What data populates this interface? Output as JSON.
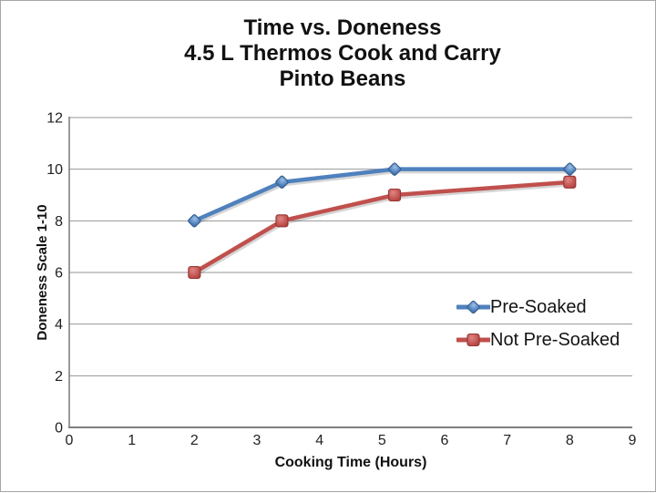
{
  "window": {
    "background": "#ffffff",
    "border_color": "#a6a6a6"
  },
  "title": {
    "lines": [
      "Time vs. Doneness",
      "4.5 L Thermos Cook and Carry",
      "Pinto Beans"
    ]
  },
  "chart_data": {
    "type": "line",
    "title": "Time vs. Doneness 4.5 L Thermos Cook and Carry Pinto Beans",
    "xlabel": "Cooking Time (Hours)",
    "ylabel": "Doneness Scale 1-10",
    "xlim": [
      0,
      9
    ],
    "ylim": [
      0,
      12
    ],
    "x_ticks": [
      0,
      1,
      2,
      3,
      4,
      5,
      6,
      7,
      8,
      9
    ],
    "y_ticks": [
      0,
      2,
      4,
      6,
      8,
      10,
      12
    ],
    "grid": true,
    "gridline_color": "#969696",
    "axis_color": "#808080",
    "tick_label_color": "#1f1f1f",
    "legend_position": "center-right",
    "series": [
      {
        "name": "Pre-Soaked",
        "marker": "diamond",
        "color": "#4F81BD",
        "marker_light": "#9CC0E7",
        "marker_dark": "#3A6595",
        "marker_stroke": "#355D8E",
        "points": [
          [
            2,
            8
          ],
          [
            3.4,
            9.5
          ],
          [
            5.2,
            10
          ],
          [
            8,
            10
          ]
        ]
      },
      {
        "name": "Not Pre-Soaked",
        "marker": "square",
        "color": "#C0504D",
        "marker_light": "#DE8683",
        "marker_dark": "#A03734",
        "marker_stroke": "#943634",
        "points": [
          [
            2,
            6
          ],
          [
            3.4,
            8
          ],
          [
            5.2,
            9
          ],
          [
            8,
            9.5
          ]
        ]
      }
    ]
  }
}
